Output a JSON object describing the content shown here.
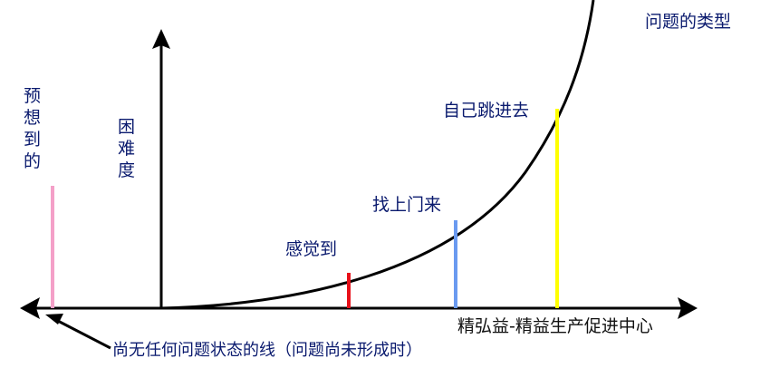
{
  "title": "问题的类型",
  "y_axis_label": [
    "困",
    "难",
    "度"
  ],
  "anticipated_label": [
    "预",
    "想",
    "到",
    "的"
  ],
  "markers": [
    {
      "label": "感觉到",
      "color": "#e8101a"
    },
    {
      "label": "找上门来",
      "color": "#6a9af0"
    },
    {
      "label": "自己跳进去",
      "color": "#ffff00"
    }
  ],
  "anticipated_color": "#f4a0c8",
  "baseline_note": "尚无任何问题状态的线（问题尚未形成时）",
  "watermark": "精弘益-精益生产促进中心",
  "colors": {
    "text": "#0a1a6e",
    "axis": "#000000"
  }
}
